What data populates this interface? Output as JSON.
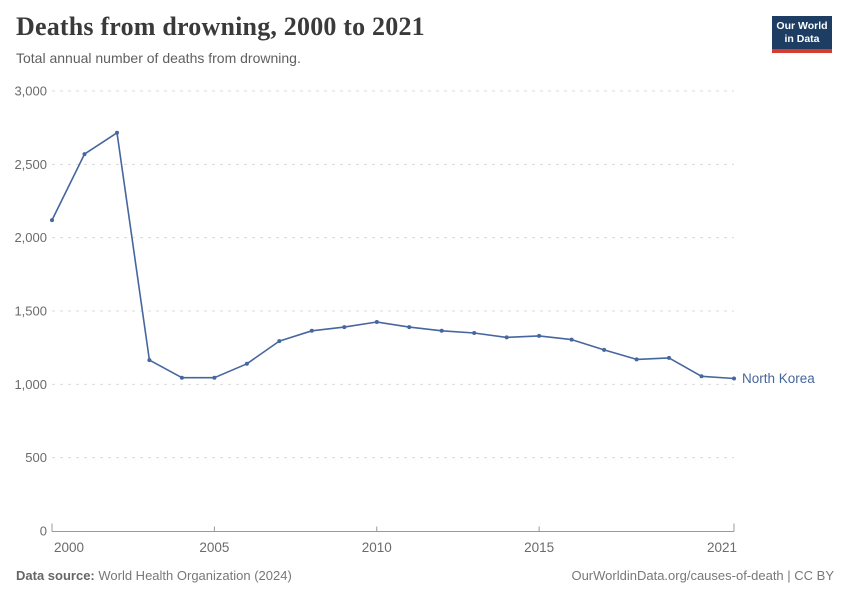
{
  "header": {
    "title": "Deaths from drowning, 2000 to 2021",
    "subtitle": "Total annual number of deaths from drowning."
  },
  "logo": {
    "line1": "Our World",
    "line2": "in Data",
    "bg_color": "#1d3d63",
    "accent_color": "#d73c32"
  },
  "chart_data": {
    "type": "line",
    "title": "Deaths from drowning, 2000 to 2021",
    "subtitle": "Total annual number of deaths from drowning.",
    "xlabel": "",
    "ylabel": "",
    "x": [
      2000,
      2001,
      2002,
      2003,
      2004,
      2005,
      2006,
      2007,
      2008,
      2009,
      2010,
      2011,
      2012,
      2013,
      2014,
      2015,
      2016,
      2017,
      2018,
      2019,
      2020,
      2021
    ],
    "series": [
      {
        "name": "North Korea",
        "color": "#46669e",
        "values": [
          2120,
          2570,
          2715,
          1165,
          1045,
          1045,
          1140,
          1295,
          1365,
          1390,
          1425,
          1390,
          1365,
          1350,
          1320,
          1330,
          1305,
          1235,
          1170,
          1180,
          1055,
          1040
        ]
      }
    ],
    "ylim": [
      0,
      3000
    ],
    "yticks": [
      0,
      500,
      1000,
      1500,
      2000,
      2500,
      3000
    ],
    "ytick_labels": [
      "0",
      "500",
      "1,000",
      "1,500",
      "2,000",
      "2,500",
      "3,000"
    ],
    "xticks": [
      2000,
      2005,
      2010,
      2015,
      2021
    ],
    "grid": "horizontal-dashed",
    "legend_position": "end-of-line-label",
    "end_label": "North Korea"
  },
  "colors": {
    "series": "#46669e",
    "grid": "#dadada",
    "axis": "#999999",
    "tick_text": "#6b6b6b"
  },
  "footer": {
    "source_label": "Data source:",
    "source_text": " World Health Organization (2024)",
    "credit": "OurWorldinData.org/causes-of-death | CC BY"
  }
}
